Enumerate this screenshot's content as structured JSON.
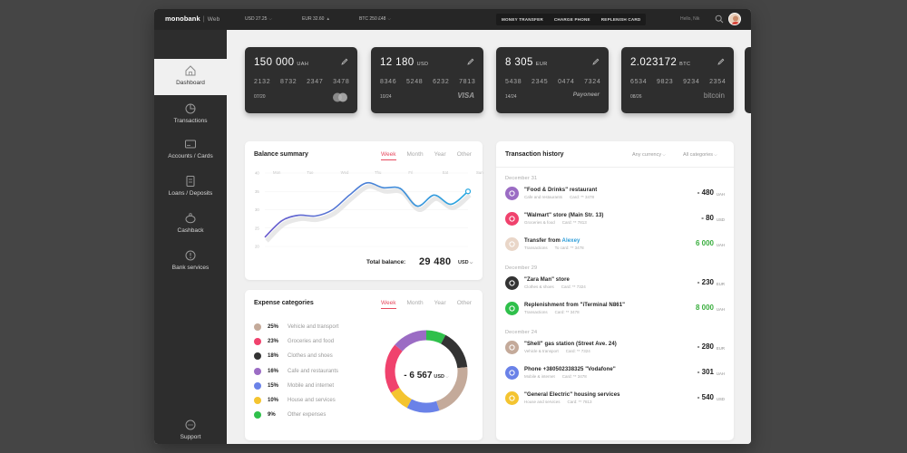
{
  "header": {
    "logo": "monobank",
    "logo_sub": "Web",
    "rates": [
      {
        "label": "USD  27.25"
      },
      {
        "label": "EUR  32.60"
      },
      {
        "label": "BTC  250 £48"
      }
    ],
    "buttons": [
      "MONEY TRANSFER",
      "CHARGE PHONE",
      "REPLENISH CARD"
    ],
    "greeting": "Hello, Nik"
  },
  "sidebar": {
    "items": [
      {
        "label": "Dashboard",
        "icon": "home-icon"
      },
      {
        "label": "Transactions",
        "icon": "pie-chart-icon"
      },
      {
        "label": "Accounts / Cards",
        "icon": "card-icon"
      },
      {
        "label": "Loans / Deposits",
        "icon": "document-icon"
      },
      {
        "label": "Cashback",
        "icon": "piggy-bank-icon"
      },
      {
        "label": "Bank services",
        "icon": "info-icon"
      }
    ],
    "support_label": "Support"
  },
  "cards": [
    {
      "amount": "150 000",
      "currency": "UAH",
      "number": [
        "2132",
        "8732",
        "2347",
        "3478"
      ],
      "expiry": "07/20",
      "brand": "mastercard"
    },
    {
      "amount": "12 180",
      "currency": "USD",
      "number": [
        "8346",
        "5248",
        "6232",
        "7813"
      ],
      "expiry": "10/24",
      "brand": "VISA"
    },
    {
      "amount": "8 305",
      "currency": "EUR",
      "number": [
        "5438",
        "2345",
        "0474",
        "7324"
      ],
      "expiry": "14/24",
      "brand": "Payoneer"
    },
    {
      "amount": "2.023172",
      "currency": "BTC",
      "number": [
        "6534",
        "9823",
        "9234",
        "2354"
      ],
      "expiry": "08/26",
      "brand": "bitcoin"
    }
  ],
  "balance": {
    "title": "Balance summary",
    "tabs": [
      "Week",
      "Month",
      "Year",
      "Other"
    ],
    "days": [
      "Mon",
      "Tue",
      "Wed",
      "Thu",
      "Fri",
      "Sat",
      "Sun"
    ],
    "total_label": "Total balance:",
    "total_value": "29 480",
    "total_currency": "USD"
  },
  "expenses": {
    "title": "Expense categories",
    "tabs": [
      "Week",
      "Month",
      "Year",
      "Other"
    ],
    "items": [
      {
        "pct": "25%",
        "name": "Vehicle and transport",
        "color": "#c4aa9a"
      },
      {
        "pct": "23%",
        "name": "Groceries and food",
        "color": "#f0426d"
      },
      {
        "pct": "18%",
        "name": "Clothes and shoes",
        "color": "#333333"
      },
      {
        "pct": "16%",
        "name": "Cafe and restaurants",
        "color": "#9b6cc4"
      },
      {
        "pct": "15%",
        "name": "Mobile and internet",
        "color": "#6a82e8"
      },
      {
        "pct": "10%",
        "name": "House and services",
        "color": "#f4c430"
      },
      {
        "pct": "9%",
        "name": "Other expenses",
        "color": "#2fc04b"
      }
    ],
    "total": "- 6 567",
    "total_currency": "USD"
  },
  "history": {
    "title": "Transaction history",
    "filter_currency": "Any currency",
    "filter_category": "All categories",
    "groups": [
      {
        "date": "December 31",
        "items": [
          {
            "title": "\"Food & Drinks\" restaurant",
            "category": "Cafe and restaurants",
            "card": "Card: ** 3478",
            "amount": "- 480",
            "currency": "UAH",
            "icon_color": "#9b6cc4",
            "icon": "cup-icon"
          },
          {
            "title": "\"Walmart\" store (Main Str. 13)",
            "category": "Groceries & food",
            "card": "Card: ** 7813",
            "amount": "- 80",
            "currency": "USD",
            "icon_color": "#f0426d",
            "icon": "cart-icon"
          },
          {
            "title": "Transfer from",
            "link": "Alexey",
            "category": "Transactions",
            "card": "To card: ** 3478",
            "amount": "6 000",
            "currency": "UAH",
            "icon_color": "#e9d6c8",
            "icon": "person-avatar-icon"
          }
        ]
      },
      {
        "date": "December 29",
        "items": [
          {
            "title": "\"Zara Man\" store",
            "category": "Clothes & shoes",
            "card": "Card: ** 7324",
            "amount": "- 230",
            "currency": "EUR",
            "icon_color": "#333333",
            "icon": "bag-icon"
          },
          {
            "title": "Replenishment from \"iTerminal N861\"",
            "category": "Transactions",
            "card": "Card: ** 3478",
            "amount": "8 000",
            "currency": "UAH",
            "icon_color": "#2fc04b",
            "icon": "arrow-down-icon"
          }
        ]
      },
      {
        "date": "December 24",
        "items": [
          {
            "title": "\"Shell\" gas station (Street Ave. 24)",
            "category": "Vehicle & transport",
            "card": "Card: ** 7324",
            "amount": "- 280",
            "currency": "EUR",
            "icon_color": "#c4aa9a",
            "icon": "car-icon"
          },
          {
            "title": "Phone +380502338325 \"Vodafone\"",
            "category": "Mobile & internet",
            "card": "Card: ** 3478",
            "amount": "- 301",
            "currency": "UAH",
            "icon_color": "#6a82e8",
            "icon": "phone-icon"
          },
          {
            "title": "\"General Electric\" housing services",
            "category": "House and services",
            "card": "Card: ** 7813",
            "amount": "- 540",
            "currency": "USD",
            "icon_color": "#f4c430",
            "icon": "bulb-icon"
          }
        ]
      }
    ]
  },
  "chart_data": {
    "type": "line",
    "categories": [
      "Mon",
      "Tue",
      "Wed",
      "Thu",
      "Fri",
      "Sat",
      "Sun"
    ],
    "y_ticks": [
      "20",
      "25",
      "30",
      "35",
      "40"
    ],
    "x": [
      0,
      0.5,
      1,
      1.5,
      2,
      2.5,
      3,
      3.5,
      4,
      4.5,
      5,
      5.5,
      6
    ],
    "values": [
      22.5,
      27,
      28.5,
      28.3,
      30,
      34,
      37.3,
      36,
      35.8,
      31,
      34,
      31.5,
      35
    ],
    "grid": true,
    "legend": "none"
  }
}
